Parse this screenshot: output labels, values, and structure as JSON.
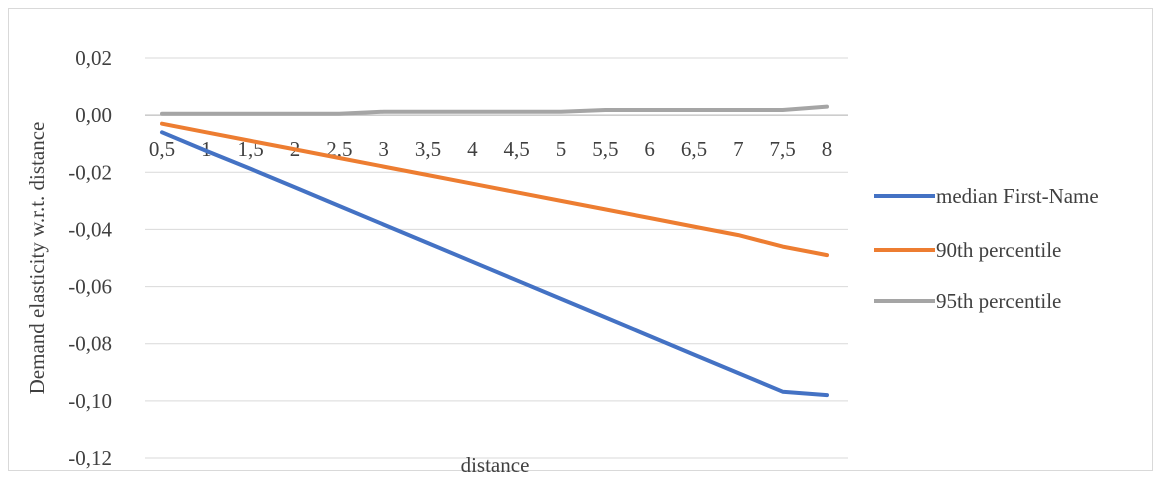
{
  "chart_data": {
    "type": "line",
    "title": "",
    "xlabel": "distance",
    "ylabel": "Demand elasticity w.r.t. distance",
    "x": [
      "0,5",
      "1",
      "1,5",
      "2",
      "2,5",
      "3",
      "3,5",
      "4",
      "4,5",
      "5",
      "5,5",
      "6",
      "6,5",
      "7",
      "7,5",
      "8"
    ],
    "ylim": [
      -0.12,
      0.02
    ],
    "yticks": [
      0.02,
      0.0,
      -0.02,
      -0.04,
      -0.06,
      -0.08,
      -0.1,
      -0.12
    ],
    "ytick_labels": [
      "0,02",
      "0,00",
      "-0,02",
      "-0,04",
      "-0,06",
      "-0,08",
      "-0,10",
      "-0,12"
    ],
    "grid": true,
    "legend_position": "right",
    "series": [
      {
        "name": "median First-Name",
        "color": "#4472c4",
        "values": [
          -0.006,
          -0.0125,
          -0.0188,
          -0.0253,
          -0.0318,
          -0.0383,
          -0.0448,
          -0.0513,
          -0.0578,
          -0.0643,
          -0.0708,
          -0.0773,
          -0.0838,
          -0.0903,
          -0.0968,
          -0.098
        ]
      },
      {
        "name": "90th percentile",
        "color": "#ed7d31",
        "values": [
          -0.003,
          -0.006,
          -0.009,
          -0.012,
          -0.015,
          -0.018,
          -0.021,
          -0.024,
          -0.027,
          -0.03,
          -0.033,
          -0.036,
          -0.039,
          -0.042,
          -0.046,
          -0.049
        ]
      },
      {
        "name": "95th percentile",
        "color": "#a5a5a5",
        "values": [
          0.0005,
          0.0005,
          0.0005,
          0.0005,
          0.0005,
          0.0012,
          0.0012,
          0.0012,
          0.0012,
          0.0012,
          0.0018,
          0.0018,
          0.0018,
          0.0018,
          0.0018,
          0.003
        ]
      }
    ]
  }
}
